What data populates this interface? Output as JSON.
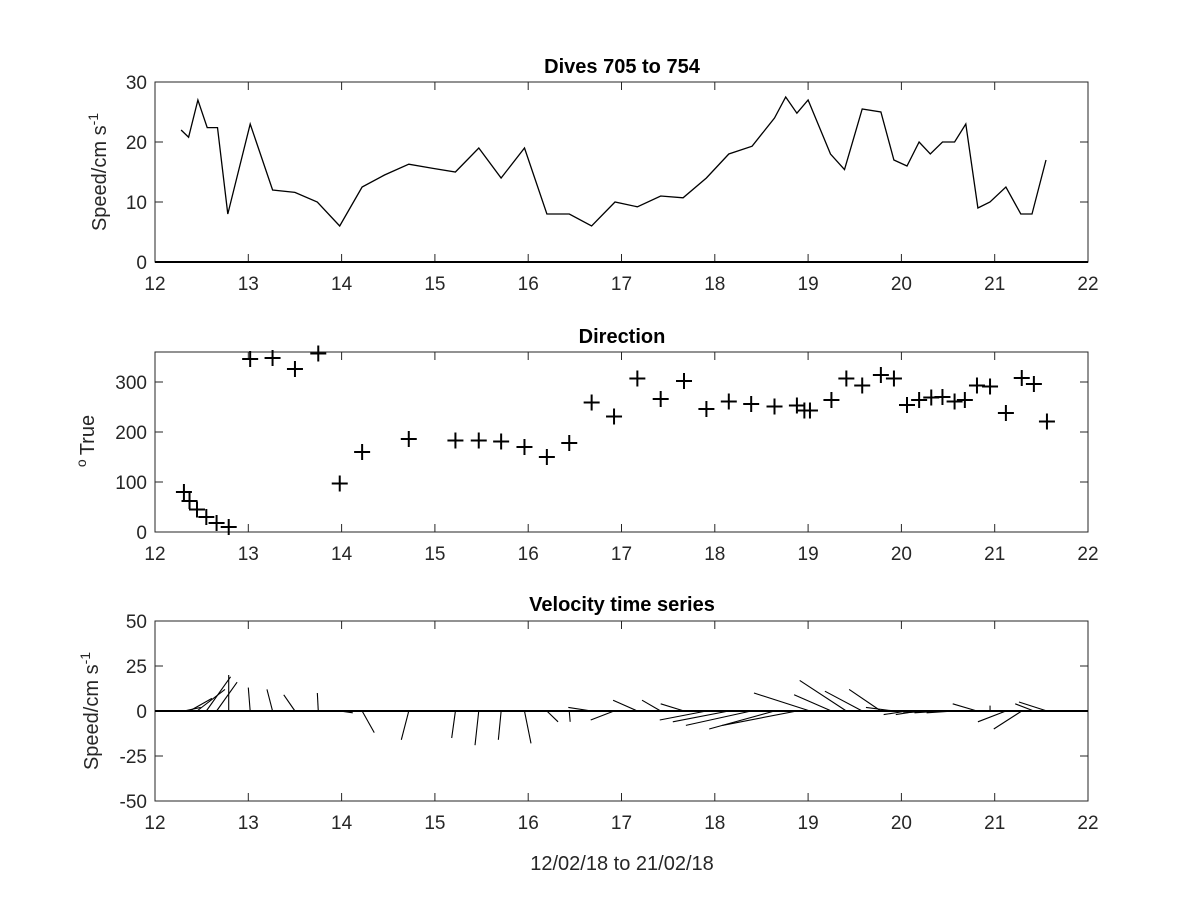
{
  "chart_data": [
    {
      "type": "line",
      "title": "Dives 705 to 754",
      "xlabel": "",
      "ylabel": "Speed/cm s",
      "ylabel_superscript": "-1",
      "xlim": [
        12,
        22
      ],
      "ylim": [
        0,
        30
      ],
      "xticks": [
        "12",
        "13",
        "14",
        "15",
        "16",
        "17",
        "18",
        "19",
        "20",
        "21",
        "22"
      ],
      "yticks": [
        "0",
        "10",
        "20",
        "30"
      ],
      "zero_line": true,
      "series": [
        {
          "x": [
            12.28,
            12.36,
            12.46,
            12.56,
            12.67,
            12.78,
            13.02,
            13.26,
            13.5,
            13.74,
            13.98,
            14.22,
            14.46,
            14.72,
            14.98,
            15.22,
            15.47,
            15.71,
            15.96,
            16.2,
            16.44,
            16.68,
            16.93,
            17.17,
            17.42,
            17.66,
            17.91,
            18.15,
            18.4,
            18.64,
            18.76,
            18.88,
            19.0,
            19.24,
            19.39,
            19.58,
            19.78,
            19.92,
            20.06,
            20.19,
            20.31,
            20.44,
            20.57,
            20.69,
            20.82,
            20.95,
            21.12,
            21.28,
            21.4,
            21.55
          ],
          "y": [
            22.0,
            20.8,
            27.0,
            22.4,
            22.4,
            8.0,
            23.0,
            12.0,
            11.6,
            10.0,
            6.0,
            12.5,
            14.5,
            16.3,
            15.6,
            15.0,
            19.0,
            14.0,
            19.0,
            8.0,
            8.0,
            6.0,
            10.0,
            9.2,
            11.0,
            10.7,
            14.0,
            18.0,
            19.3,
            24.0,
            27.5,
            24.8,
            27.0,
            18.0,
            15.4,
            25.5,
            25.0,
            17.0,
            16.0,
            20.0,
            18.0,
            20.0,
            20.0,
            23.0,
            9.0,
            10.0,
            12.5,
            8.0,
            8.0,
            17.0
          ]
        }
      ]
    },
    {
      "type": "scatter",
      "title": "Direction",
      "xlabel": "",
      "ylabel": "True",
      "ylabel_prefix": "o",
      "marker": "+",
      "xlim": [
        12,
        22
      ],
      "ylim": [
        0,
        360
      ],
      "xticks": [
        "12",
        "13",
        "14",
        "15",
        "16",
        "17",
        "18",
        "19",
        "20",
        "21",
        "22"
      ],
      "yticks": [
        "0",
        "100",
        "200",
        "300"
      ],
      "series": [
        {
          "x": [
            12.31,
            12.37,
            12.45,
            12.55,
            12.66,
            12.79,
            13.02,
            13.26,
            13.5,
            13.75,
            13.98,
            14.22,
            14.72,
            15.22,
            15.47,
            15.71,
            15.96,
            16.2,
            16.44,
            16.68,
            16.92,
            17.17,
            17.42,
            17.67,
            17.91,
            18.15,
            18.39,
            18.64,
            18.88,
            18.96,
            19.02,
            19.25,
            19.41,
            19.58,
            19.78,
            19.92,
            20.06,
            20.19,
            20.32,
            20.44,
            20.57,
            20.68,
            20.81,
            20.95,
            21.12,
            21.29,
            21.42,
            21.56
          ],
          "y": [
            80,
            62,
            45,
            30,
            18,
            10,
            346,
            348,
            326,
            357,
            97,
            160,
            186,
            183,
            183,
            181,
            170,
            150,
            178,
            259,
            231,
            307,
            266,
            302,
            246,
            261,
            256,
            251,
            253,
            243,
            243,
            264,
            307,
            293,
            314,
            307,
            254,
            264,
            269,
            270,
            261,
            264,
            293,
            291,
            238,
            308,
            296,
            221
          ]
        }
      ]
    },
    {
      "type": "quiver",
      "title": "Velocity time series",
      "xlabel": "12/02/18 to 21/02/18",
      "ylabel": "Speed/cm s",
      "ylabel_superscript": "-1",
      "xlim": [
        12,
        22
      ],
      "ylim": [
        -50,
        50
      ],
      "xticks": [
        "12",
        "13",
        "14",
        "15",
        "16",
        "17",
        "18",
        "19",
        "20",
        "21",
        "22"
      ],
      "yticks": [
        "-50",
        "-25",
        "0",
        "25",
        "50"
      ],
      "zero_line": true,
      "note": "each stick starts on the zero line at the dive time; its tip is offset by (dx days, dy cm/s)",
      "series": [
        {
          "x": [
            12.31,
            12.37,
            12.45,
            12.55,
            12.66,
            12.79,
            13.02,
            13.26,
            13.5,
            13.75,
            13.98,
            14.22,
            14.72,
            15.22,
            15.47,
            15.71,
            15.96,
            16.2,
            16.44,
            16.68,
            16.92,
            17.17,
            17.42,
            17.67,
            17.91,
            18.15,
            18.39,
            18.64,
            18.88,
            19.02,
            19.25,
            19.41,
            19.58,
            19.78,
            19.92,
            20.06,
            20.19,
            20.32,
            20.44,
            20.57,
            20.68,
            20.81,
            20.95,
            21.12,
            21.29,
            21.42,
            21.56
          ],
          "dx": [
            0.18,
            0.24,
            0.3,
            0.26,
            0.22,
            0.0,
            -0.02,
            -0.06,
            -0.12,
            -0.01,
            0.14,
            0.13,
            -0.08,
            -0.04,
            -0.04,
            -0.03,
            0.07,
            0.12,
            0.01,
            -0.25,
            -0.25,
            -0.26,
            -0.2,
            -0.25,
            -0.5,
            -0.6,
            -0.7,
            -0.7,
            -0.8,
            -0.6,
            -0.4,
            -0.5,
            -0.4,
            -0.34,
            -0.3,
            -0.25,
            -0.25,
            -0.3,
            -0.3,
            -0.3,
            -0.26,
            -0.26,
            0.0,
            -0.3,
            -0.3,
            -0.2,
            -0.3
          ],
          "dy": [
            2,
            7,
            12,
            19,
            16,
            20,
            13,
            12,
            9,
            10,
            -1,
            -12,
            -16,
            -15,
            -19,
            -16,
            -18,
            -6,
            -6,
            2,
            -5,
            6,
            6,
            4,
            -5,
            -6,
            -8,
            -10,
            -8,
            10,
            9,
            17,
            11,
            12,
            2,
            -2,
            -2,
            -1,
            -1,
            -1,
            0,
            4,
            3,
            -6,
            -10,
            4,
            5
          ]
        }
      ]
    }
  ]
}
